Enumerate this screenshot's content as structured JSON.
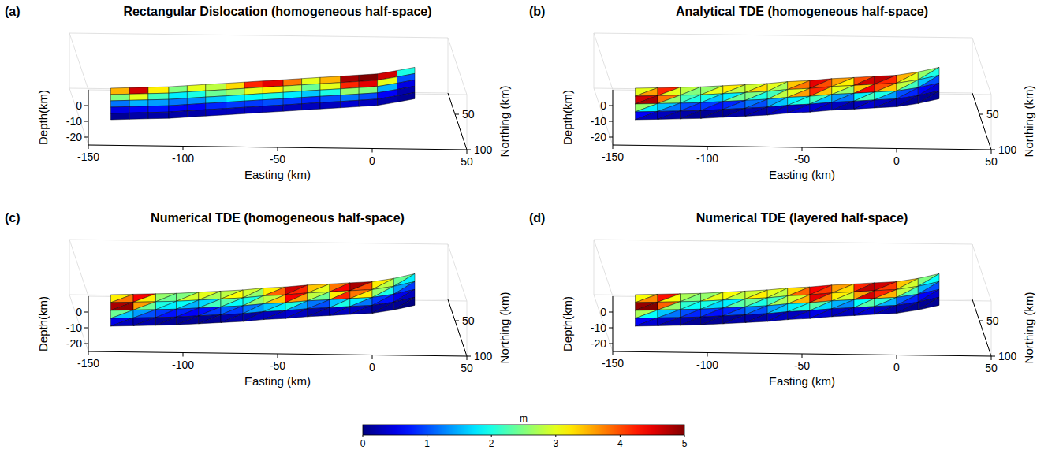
{
  "chart_data": [
    {
      "type": "quadmesh",
      "panel": "(a)",
      "title": "Rectangular Dislocation (homogeneous half-space)",
      "xlabel": "Easting (km)",
      "ylabel": "Northing (km)",
      "zlabel": "Depth(km)",
      "xlim": [
        -150,
        50
      ],
      "xticks": [
        -150,
        -100,
        -50,
        0,
        50
      ],
      "ylim": [
        20,
        100
      ],
      "yticks": [
        50,
        100
      ],
      "zlim": [
        -25,
        10
      ],
      "zticks": [
        0,
        -10,
        -20
      ],
      "trace_easting": [
        -135,
        -125,
        -115,
        -104,
        -94,
        -84,
        -73,
        -63,
        -53,
        -42,
        -32,
        -22,
        -11,
        -1,
        9,
        20,
        30
      ],
      "trace_northing": [
        75,
        74,
        73,
        72,
        70,
        68,
        66,
        64,
        62,
        60,
        58,
        56,
        54,
        52,
        50,
        45,
        40
      ],
      "depth_levels": [
        0,
        -4,
        -8,
        -12,
        -16,
        -20
      ],
      "slip": [
        [
          3.5,
          4.6,
          3.2,
          2.5,
          3.0,
          2.8,
          3.3,
          4.2,
          4.5,
          3.8,
          3.0,
          3.5,
          4.8,
          5.0,
          4.6,
          2.0
        ],
        [
          2.5,
          3.0,
          2.2,
          1.8,
          2.0,
          2.4,
          2.6,
          3.0,
          3.2,
          2.8,
          2.4,
          3.0,
          4.2,
          4.5,
          3.0,
          1.0
        ],
        [
          1.2,
          1.5,
          1.4,
          1.2,
          1.3,
          1.6,
          1.8,
          1.9,
          2.0,
          1.8,
          1.6,
          2.0,
          2.6,
          2.5,
          1.5,
          0.5
        ],
        [
          0.5,
          0.6,
          0.7,
          0.6,
          0.6,
          0.8,
          0.9,
          0.9,
          1.0,
          0.9,
          0.8,
          1.0,
          1.2,
          1.0,
          0.6,
          0.2
        ],
        [
          0.1,
          0.2,
          0.2,
          0.2,
          0.2,
          0.3,
          0.3,
          0.3,
          0.3,
          0.3,
          0.3,
          0.3,
          0.4,
          0.3,
          0.2,
          0.1
        ]
      ]
    },
    {
      "type": "trimesh",
      "panel": "(b)",
      "title": "Analytical TDE (homogeneous half-space)",
      "xlabel": "Easting (km)",
      "ylabel": "Northing (km)",
      "zlabel": "Depth(km)",
      "xlim": [
        -150,
        50
      ],
      "xticks": [
        -150,
        -100,
        -50,
        0,
        50
      ],
      "ylim": [
        20,
        100
      ],
      "yticks": [
        50,
        100
      ],
      "zlim": [
        -25,
        10
      ],
      "zticks": [
        0,
        -10,
        -20
      ],
      "trace_easting": [
        -135,
        -123,
        -111,
        -100,
        -88,
        -76,
        -64,
        -53,
        -41,
        -29,
        -17,
        -6,
        6,
        18,
        30
      ],
      "trace_northing": [
        75,
        74,
        73,
        72,
        70,
        68,
        66,
        63,
        61,
        58,
        56,
        54,
        52,
        47,
        40
      ],
      "depth_levels": [
        0,
        -5,
        -10,
        -15,
        -20
      ],
      "slip": [
        [
          3.0,
          3.6,
          4.2,
          3.0,
          2.8,
          2.5,
          2.6,
          3.0,
          3.2,
          2.8,
          2.9,
          3.3,
          3.0,
          2.7,
          3.4,
          3.8,
          4.5,
          4.0,
          3.6,
          3.2,
          4.0,
          4.6,
          4.7,
          4.2,
          3.5,
          3.0,
          2.6,
          2.0
        ],
        [
          4.6,
          4.8,
          3.8,
          2.6,
          2.2,
          2.0,
          2.0,
          1.6,
          1.8,
          2.4,
          2.5,
          2.0,
          2.2,
          2.8,
          3.0,
          3.6,
          4.2,
          3.4,
          3.0,
          2.6,
          3.4,
          4.4,
          4.0,
          3.4,
          2.8,
          2.2,
          1.6,
          1.0
        ],
        [
          2.6,
          1.8,
          1.6,
          1.2,
          1.0,
          0.8,
          0.9,
          0.7,
          0.8,
          1.0,
          1.2,
          1.0,
          1.4,
          1.6,
          1.8,
          2.0,
          2.2,
          1.6,
          1.4,
          1.2,
          1.8,
          2.2,
          2.0,
          1.4,
          1.0,
          0.8,
          0.6,
          0.4
        ],
        [
          0.6,
          0.3,
          0.3,
          0.2,
          0.2,
          0.1,
          0.1,
          0.1,
          0.1,
          0.2,
          0.2,
          0.2,
          0.3,
          0.3,
          0.3,
          0.4,
          0.4,
          0.3,
          0.3,
          0.2,
          0.3,
          0.4,
          0.3,
          0.2,
          0.2,
          0.1,
          0.1,
          0.1
        ]
      ]
    },
    {
      "type": "trimesh",
      "panel": "(c)",
      "title": "Numerical TDE (homogeneous half-space)",
      "xlabel": "Easting (km)",
      "ylabel": "Northing (km)",
      "zlabel": "Depth(km)",
      "xlim": [
        -150,
        50
      ],
      "xticks": [
        -150,
        -100,
        -50,
        0,
        50
      ],
      "ylim": [
        20,
        100
      ],
      "yticks": [
        50,
        100
      ],
      "zlim": [
        -25,
        10
      ],
      "zticks": [
        0,
        -10,
        -20
      ],
      "trace_easting": [
        -135,
        -123,
        -111,
        -100,
        -88,
        -76,
        -64,
        -53,
        -41,
        -29,
        -17,
        -6,
        6,
        18,
        30
      ],
      "trace_northing": [
        75,
        74,
        73,
        72,
        70,
        68,
        66,
        63,
        61,
        58,
        56,
        54,
        52,
        47,
        40
      ],
      "depth_levels": [
        0,
        -5,
        -10,
        -15,
        -20
      ],
      "slip": [
        [
          3.2,
          3.8,
          4.4,
          3.2,
          2.6,
          2.4,
          2.5,
          2.9,
          3.0,
          2.7,
          2.8,
          3.1,
          2.9,
          2.6,
          3.2,
          3.9,
          4.6,
          4.2,
          3.4,
          3.0,
          3.8,
          4.4,
          4.8,
          4.0,
          3.2,
          2.8,
          2.4,
          1.8
        ],
        [
          4.8,
          4.9,
          3.6,
          2.4,
          2.0,
          1.8,
          1.9,
          1.5,
          1.7,
          2.2,
          2.3,
          1.9,
          2.0,
          2.6,
          2.8,
          3.4,
          4.4,
          3.6,
          2.8,
          2.4,
          3.2,
          4.2,
          3.8,
          3.2,
          2.6,
          2.0,
          1.4,
          0.9
        ],
        [
          2.4,
          1.6,
          1.4,
          1.0,
          0.9,
          0.7,
          0.8,
          0.6,
          0.7,
          0.9,
          1.1,
          0.9,
          1.2,
          1.4,
          1.6,
          1.8,
          2.0,
          1.4,
          1.2,
          1.0,
          1.6,
          2.0,
          1.8,
          1.2,
          0.9,
          0.7,
          0.5,
          0.3
        ],
        [
          0.5,
          0.3,
          0.2,
          0.2,
          0.1,
          0.1,
          0.1,
          0.1,
          0.1,
          0.1,
          0.2,
          0.2,
          0.2,
          0.3,
          0.3,
          0.3,
          0.4,
          0.3,
          0.2,
          0.2,
          0.3,
          0.3,
          0.3,
          0.2,
          0.1,
          0.1,
          0.1,
          0.0
        ]
      ]
    },
    {
      "type": "trimesh",
      "panel": "(d)",
      "title": "Numerical TDE (layered half-space)",
      "xlabel": "Easting (km)",
      "ylabel": "Northing (km)",
      "zlabel": "Depth(km)",
      "xlim": [
        -150,
        50
      ],
      "xticks": [
        -150,
        -100,
        -50,
        0,
        50
      ],
      "ylim": [
        20,
        100
      ],
      "yticks": [
        50,
        100
      ],
      "zlim": [
        -25,
        10
      ],
      "zticks": [
        0,
        -10,
        -20
      ],
      "trace_easting": [
        -135,
        -123,
        -111,
        -100,
        -88,
        -76,
        -64,
        -53,
        -41,
        -29,
        -17,
        -6,
        6,
        18,
        30
      ],
      "trace_northing": [
        75,
        74,
        73,
        72,
        70,
        68,
        66,
        63,
        61,
        58,
        56,
        54,
        52,
        47,
        40
      ],
      "depth_levels": [
        0,
        -5,
        -10,
        -15,
        -20
      ],
      "slip": [
        [
          3.1,
          3.7,
          4.3,
          3.1,
          2.7,
          2.5,
          2.6,
          3.0,
          3.1,
          2.8,
          2.9,
          3.2,
          3.0,
          2.8,
          3.3,
          3.9,
          4.4,
          4.1,
          3.6,
          3.3,
          4.2,
          4.7,
          4.6,
          4.1,
          3.4,
          2.9,
          2.5,
          1.9
        ],
        [
          4.9,
          5.0,
          3.9,
          2.6,
          2.1,
          1.9,
          2.0,
          1.7,
          1.8,
          2.3,
          2.4,
          2.0,
          2.2,
          2.7,
          2.9,
          3.5,
          4.5,
          3.8,
          3.2,
          2.9,
          3.6,
          4.6,
          4.2,
          3.5,
          2.8,
          2.2,
          1.5,
          1.0
        ],
        [
          2.7,
          1.9,
          1.6,
          1.2,
          1.0,
          0.8,
          0.9,
          0.7,
          0.8,
          1.0,
          1.2,
          1.0,
          1.4,
          1.6,
          1.8,
          2.0,
          2.3,
          1.7,
          1.5,
          1.3,
          1.9,
          2.3,
          2.1,
          1.5,
          1.1,
          0.8,
          0.6,
          0.4
        ],
        [
          0.6,
          0.4,
          0.3,
          0.2,
          0.2,
          0.1,
          0.1,
          0.1,
          0.1,
          0.2,
          0.2,
          0.2,
          0.3,
          0.3,
          0.3,
          0.4,
          0.5,
          0.4,
          0.3,
          0.3,
          0.4,
          0.4,
          0.3,
          0.2,
          0.2,
          0.1,
          0.1,
          0.1
        ]
      ]
    }
  ],
  "colorbar": {
    "label": "m",
    "range": [
      0,
      5
    ],
    "ticks": [
      0,
      1,
      2,
      3,
      4,
      5
    ]
  }
}
